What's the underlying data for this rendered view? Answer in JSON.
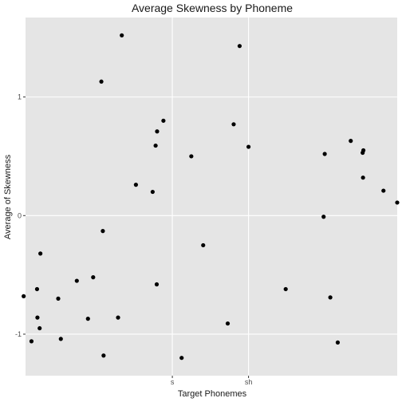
{
  "chart_data": {
    "type": "scatter",
    "title": "Average Skewness by Phoneme",
    "xlabel": "Target Phonemes",
    "ylabel": "Average of Skewness",
    "x_ticks": [
      {
        "label": "s",
        "value": 0.395
      },
      {
        "label": "sh",
        "value": 0.6
      }
    ],
    "xlim": [
      0,
      1
    ],
    "ylim": [
      -1.35,
      1.67
    ],
    "y_ticks": [
      -1,
      0,
      1
    ],
    "grid": true,
    "legend": "none",
    "colors": {
      "panel": "#e5e5e5",
      "grid_major": "#ffffff",
      "point": "#000000",
      "text": "#1a1a1a",
      "tick_text": "#4d4d4d",
      "tick_mark": "#333333"
    },
    "points": [
      {
        "x": -0.005,
        "y": -0.68
      },
      {
        "x": 0.016,
        "y": -1.06
      },
      {
        "x": 0.031,
        "y": -0.62
      },
      {
        "x": 0.032,
        "y": -0.86
      },
      {
        "x": 0.038,
        "y": -0.95
      },
      {
        "x": 0.04,
        "y": -0.32
      },
      {
        "x": 0.088,
        "y": -0.7
      },
      {
        "x": 0.095,
        "y": -1.04
      },
      {
        "x": 0.138,
        "y": -0.55
      },
      {
        "x": 0.168,
        "y": -0.87
      },
      {
        "x": 0.182,
        "y": -0.52
      },
      {
        "x": 0.204,
        "y": 1.13
      },
      {
        "x": 0.208,
        "y": -0.13
      },
      {
        "x": 0.21,
        "y": -1.18
      },
      {
        "x": 0.249,
        "y": -0.86
      },
      {
        "x": 0.259,
        "y": 1.52
      },
      {
        "x": 0.297,
        "y": 0.26
      },
      {
        "x": 0.342,
        "y": 0.2
      },
      {
        "x": 0.35,
        "y": 0.59
      },
      {
        "x": 0.354,
        "y": 0.71
      },
      {
        "x": 0.353,
        "y": -0.58
      },
      {
        "x": 0.371,
        "y": 0.8
      },
      {
        "x": 0.42,
        "y": -1.2
      },
      {
        "x": 0.446,
        "y": 0.5
      },
      {
        "x": 0.478,
        "y": -0.25
      },
      {
        "x": 0.544,
        "y": -0.91
      },
      {
        "x": 0.56,
        "y": 0.77
      },
      {
        "x": 0.576,
        "y": 1.43
      },
      {
        "x": 0.6,
        "y": 0.58
      },
      {
        "x": 0.7,
        "y": -0.62
      },
      {
        "x": 0.802,
        "y": -0.01
      },
      {
        "x": 0.805,
        "y": 0.52
      },
      {
        "x": 0.82,
        "y": -0.69
      },
      {
        "x": 0.84,
        "y": -1.07
      },
      {
        "x": 0.875,
        "y": 0.63
      },
      {
        "x": 0.907,
        "y": 0.53
      },
      {
        "x": 0.909,
        "y": 0.55
      },
      {
        "x": 0.908,
        "y": 0.32
      },
      {
        "x": 0.963,
        "y": 0.21
      },
      {
        "x": 1.0,
        "y": 0.11
      }
    ]
  }
}
